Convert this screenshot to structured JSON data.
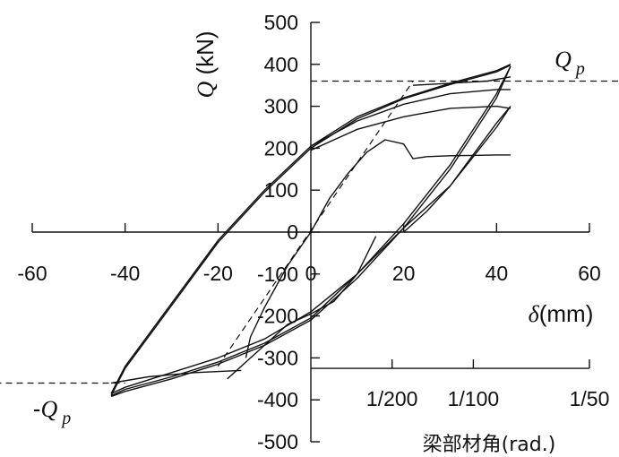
{
  "chart_data": {
    "type": "line",
    "title": "",
    "xlabel": {
      "symbol": "δ",
      "unit": "(mm)"
    },
    "ylabel": {
      "symbol": "Q",
      "unit": "(kN)"
    },
    "xlim": [
      -60,
      60
    ],
    "ylim": [
      -500,
      500
    ],
    "x_ticks": [
      -60,
      -40,
      -20,
      0,
      20,
      40,
      60
    ],
    "y_ticks": [
      -500,
      -400,
      -300,
      -200,
      -100,
      0,
      100,
      200,
      300,
      400,
      500
    ],
    "x_tick_labels": [
      "-60",
      "-40",
      "-20",
      "0",
      "20",
      "40",
      "60"
    ],
    "y_tick_labels": [
      "-500",
      "-400",
      "-300",
      "-200",
      "-100",
      "0",
      "100",
      "200",
      "300",
      "400",
      "500"
    ],
    "secondary_x_axis": {
      "label": "梁部材角(rad.)",
      "y_position": -325,
      "ticks": [
        {
          "label": "1/200",
          "x": 17.5
        },
        {
          "label": "1/100",
          "x": 35
        },
        {
          "label": "1/50",
          "x": 60
        }
      ]
    },
    "reference_lines": [
      {
        "label": "Q",
        "subscript": "p",
        "y": 360,
        "x_from": 0,
        "x_to": 68
      },
      {
        "label": "-Q",
        "subscript": "p",
        "y": -360,
        "x_from": -68,
        "x_to": -40
      }
    ],
    "series": [
      {
        "x": [
          0,
          -5,
          -10,
          -13,
          -14
        ],
        "y": [
          0,
          -80,
          -180,
          -250,
          -300
        ]
      },
      {
        "x": [
          0,
          4,
          8,
          12,
          16,
          20,
          22,
          25
        ],
        "y": [
          0,
          80,
          140,
          190,
          220,
          210,
          175,
          180
        ]
      },
      {
        "x": [
          25,
          30,
          35,
          40,
          43
        ],
        "y": [
          180,
          182,
          183,
          184,
          184
        ]
      },
      {
        "x": [
          14,
          10,
          5,
          0,
          -5,
          -10,
          -18
        ],
        "y": [
          -10,
          -100,
          -165,
          -195,
          -220,
          -270,
          -350
        ]
      },
      {
        "x": [
          20,
          25,
          30,
          35,
          40,
          43
        ],
        "y": [
          0,
          50,
          110,
          180,
          250,
          300
        ]
      },
      {
        "x": [
          43,
          40,
          30,
          20,
          10,
          0,
          -10,
          -20,
          -30,
          -40,
          -43
        ],
        "y": [
          300,
          260,
          110,
          10,
          -100,
          -190,
          -255,
          -300,
          -335,
          -370,
          -385
        ]
      },
      {
        "x": [
          -43,
          -40,
          -30,
          -20,
          -10,
          0,
          10,
          20,
          30,
          40,
          43
        ],
        "y": [
          -385,
          -320,
          -170,
          -20,
          100,
          205,
          275,
          320,
          355,
          385,
          400
        ]
      },
      {
        "x": [
          -43,
          -40,
          -30,
          -20,
          -10,
          0,
          10,
          20,
          30,
          40,
          43
        ],
        "y": [
          -390,
          -325,
          -175,
          -25,
          95,
          200,
          270,
          318,
          352,
          382,
          398
        ]
      },
      {
        "x": [
          43,
          40,
          30,
          20,
          10,
          0,
          -10,
          -20,
          -30,
          -40,
          -43
        ],
        "y": [
          395,
          330,
          160,
          20,
          -100,
          -205,
          -265,
          -310,
          -345,
          -375,
          -390
        ]
      },
      {
        "x": [
          43,
          40,
          30,
          20,
          10,
          0,
          -10,
          -20,
          -30,
          -40,
          -43
        ],
        "y": [
          395,
          320,
          150,
          10,
          -110,
          -210,
          -270,
          -315,
          -350,
          -380,
          -392
        ]
      },
      {
        "x": [
          0,
          10,
          20,
          30,
          40,
          43
        ],
        "y": [
          195,
          245,
          275,
          295,
          300,
          295
        ]
      },
      {
        "x": [
          0,
          10,
          20,
          30,
          40,
          43
        ],
        "y": [
          205,
          265,
          305,
          330,
          340,
          340
        ]
      },
      {
        "x": [
          22,
          30,
          38,
          43
        ],
        "y": [
          350,
          355,
          360,
          370
        ]
      },
      {
        "x": [
          -43,
          -35,
          -25,
          -15
        ],
        "y": [
          -360,
          -345,
          -335,
          -330
        ]
      }
    ]
  }
}
